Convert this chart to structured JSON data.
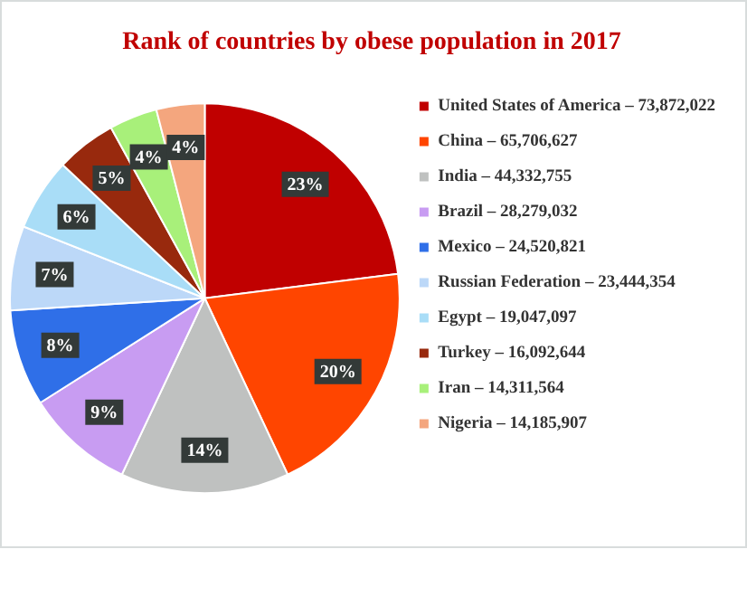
{
  "chart_data": {
    "type": "pie",
    "title": "Rank of countries by obese population in 2017",
    "categories": [
      "United States of America – 73,872,022",
      "China – 65,706,627",
      "India – 44,332,755",
      "Brazil – 28,279,032",
      "Mexico – 24,520,821",
      "Russian Federation – 23,444,354",
      "Egypt – 19,047,097",
      "Turkey – 16,092,644",
      "Iran – 14,311,564",
      "Nigeria – 14,185,907"
    ],
    "values": [
      23,
      20,
      14,
      9,
      8,
      7,
      6,
      5,
      4,
      4
    ],
    "value_labels": [
      "23%",
      "20%",
      "14%",
      "9%",
      "8%",
      "7%",
      "6%",
      "5%",
      "4%",
      "4%"
    ],
    "colors": [
      "#c00000",
      "#ff4500",
      "#bfc1c0",
      "#c89cf2",
      "#2f6fe8",
      "#bcd8f8",
      "#a9ddf7",
      "#98290d",
      "#a8f07a",
      "#f4a67e"
    ],
    "legend": "right"
  }
}
